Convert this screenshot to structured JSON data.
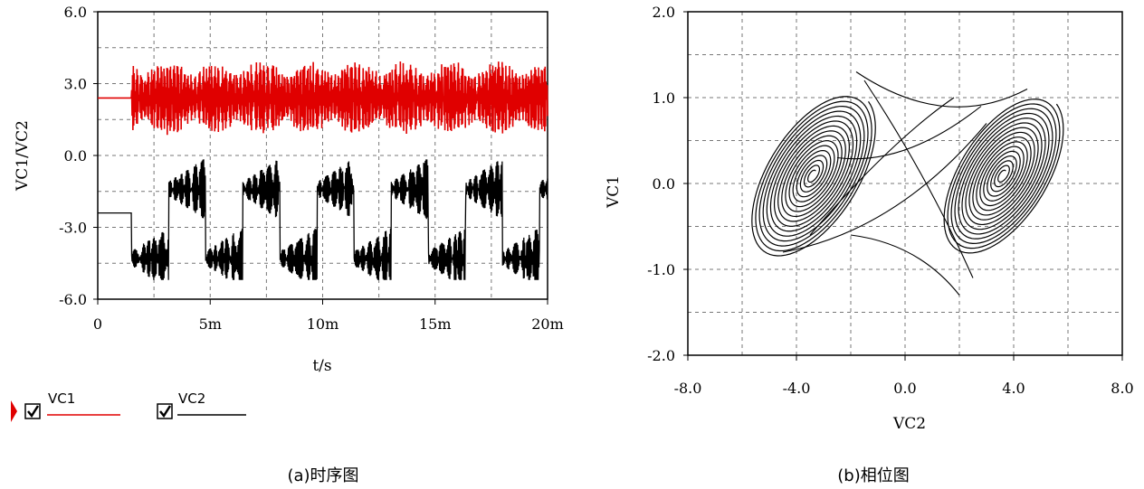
{
  "chart_data": [
    {
      "type": "line",
      "xlabel": "t/s",
      "ylabel": "VC1/VC2",
      "xlim": [
        0,
        0.02
      ],
      "ylim": [
        -6.0,
        6.0
      ],
      "x_ticks": [
        {
          "value": 0,
          "label": "0"
        },
        {
          "value": 0.005,
          "label": "5m"
        },
        {
          "value": 0.01,
          "label": "10m"
        },
        {
          "value": 0.015,
          "label": "15m"
        },
        {
          "value": 0.02,
          "label": "20m"
        }
      ],
      "y_ticks": [
        {
          "value": 6.0,
          "label": "6.0"
        },
        {
          "value": 3.0,
          "label": "3.0"
        },
        {
          "value": 0.0,
          "label": "0.0"
        },
        {
          "value": -3.0,
          "label": "-3.0"
        },
        {
          "value": -6.0,
          "label": "-6.0"
        }
      ],
      "grid": true,
      "series": [
        {
          "name": "VC1",
          "color": "#e00000",
          "initial": 2.4,
          "onset": 0.0015,
          "center": 2.4,
          "amplitude_range": [
            -1.3,
            1.3
          ]
        },
        {
          "name": "VC2",
          "color": "#000000",
          "initial": -2.4,
          "onset": 0.0015,
          "levels": [
            -1.4,
            -4.3
          ],
          "period": 0.0033,
          "amplitude_range": [
            -5.2,
            0.2
          ]
        }
      ],
      "legend": {
        "placement": "bottom-left",
        "items": [
          {
            "label": "VC1",
            "color": "#e00000",
            "checked": true
          },
          {
            "label": "VC2",
            "color": "#000000",
            "checked": true
          }
        ]
      },
      "caption": "(a)时序图"
    },
    {
      "type": "line",
      "xlabel": "VC2",
      "ylabel": "VC1",
      "xlim": [
        -8.0,
        8.0
      ],
      "ylim": [
        -2.0,
        2.0
      ],
      "x_ticks": [
        "-8.0",
        "-4.0",
        "0.0",
        "4.0",
        "8.0"
      ],
      "y_ticks": [
        "2.0",
        "1.0",
        "0.0",
        "-1.0",
        "-2.0"
      ],
      "grid": true,
      "attractor": {
        "left_focus": [
          -3.4,
          0.1
        ],
        "right_focus": [
          3.6,
          0.1
        ],
        "x_extent": [
          -6.3,
          6.3
        ],
        "y_extent": [
          -1.35,
          1.35
        ]
      },
      "caption": "(b)相位图"
    }
  ]
}
